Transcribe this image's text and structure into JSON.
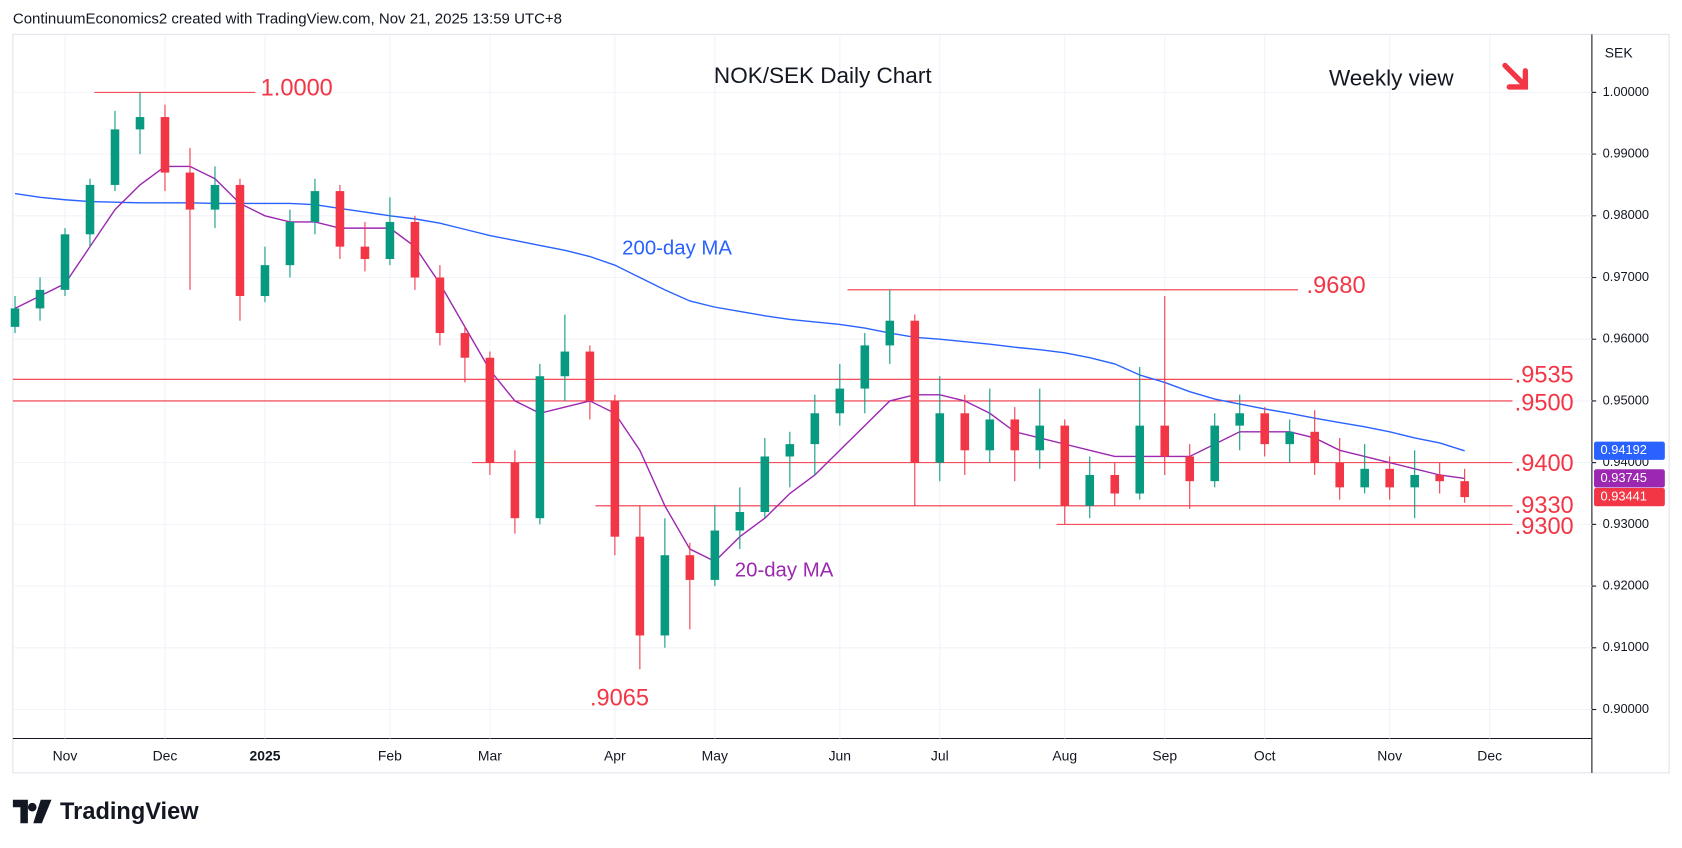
{
  "header": "ContinuumEconomics2 created with TradingView.com, Nov 21, 2025 13:59 UTC+8",
  "logo": "TradingView",
  "chart_data": {
    "type": "candlestick",
    "title": "NOK/SEK Daily Chart",
    "subtitle": "Weekly view",
    "currency": "SEK",
    "categories": [
      null,
      null,
      "Nov",
      null,
      null,
      null,
      "Dec",
      null,
      null,
      null,
      "2025",
      null,
      null,
      null,
      null,
      "Feb",
      null,
      null,
      null,
      "Mar",
      null,
      null,
      null,
      null,
      "Apr",
      null,
      null,
      null,
      "May",
      null,
      null,
      null,
      null,
      "Jun",
      null,
      null,
      null,
      "Jul",
      null,
      null,
      null,
      null,
      "Aug",
      null,
      null,
      null,
      "Sep",
      null,
      null,
      null,
      "Oct",
      null,
      null,
      null,
      null,
      "Nov",
      null,
      null,
      null,
      "Dec"
    ],
    "candles": [
      [
        0.962,
        0.967,
        0.961,
        0.965
      ],
      [
        0.965,
        0.97,
        0.963,
        0.968
      ],
      [
        0.968,
        0.978,
        0.967,
        0.977
      ],
      [
        0.977,
        0.986,
        0.975,
        0.985
      ],
      [
        0.985,
        0.997,
        0.984,
        0.994
      ],
      [
        0.994,
        1.0,
        0.99,
        0.996
      ],
      [
        0.996,
        0.998,
        0.984,
        0.987
      ],
      [
        0.987,
        0.991,
        0.968,
        0.981
      ],
      [
        0.981,
        0.988,
        0.978,
        0.985
      ],
      [
        0.985,
        0.986,
        0.963,
        0.967
      ],
      [
        0.967,
        0.975,
        0.966,
        0.972
      ],
      [
        0.972,
        0.981,
        0.97,
        0.979
      ],
      [
        0.979,
        0.986,
        0.977,
        0.984
      ],
      [
        0.984,
        0.985,
        0.973,
        0.975
      ],
      [
        0.975,
        0.979,
        0.971,
        0.973
      ],
      [
        0.973,
        0.983,
        0.972,
        0.979
      ],
      [
        0.979,
        0.98,
        0.968,
        0.97
      ],
      [
        0.97,
        0.972,
        0.959,
        0.961
      ],
      [
        0.961,
        0.962,
        0.953,
        0.957
      ],
      [
        0.957,
        0.958,
        0.938,
        0.94
      ],
      [
        0.94,
        0.942,
        0.9285,
        0.931
      ],
      [
        0.931,
        0.956,
        0.93,
        0.954
      ],
      [
        0.954,
        0.964,
        0.95,
        0.958
      ],
      [
        0.958,
        0.959,
        0.947,
        0.95
      ],
      [
        0.95,
        0.951,
        0.925,
        0.928
      ],
      [
        0.928,
        0.933,
        0.9065,
        0.912
      ],
      [
        0.912,
        0.931,
        0.91,
        0.925
      ],
      [
        0.925,
        0.927,
        0.913,
        0.921
      ],
      [
        0.921,
        0.933,
        0.92,
        0.929
      ],
      [
        0.929,
        0.936,
        0.926,
        0.932
      ],
      [
        0.932,
        0.944,
        0.931,
        0.941
      ],
      [
        0.941,
        0.945,
        0.936,
        0.943
      ],
      [
        0.943,
        0.951,
        0.938,
        0.948
      ],
      [
        0.948,
        0.956,
        0.946,
        0.952
      ],
      [
        0.952,
        0.961,
        0.948,
        0.959
      ],
      [
        0.959,
        0.968,
        0.956,
        0.963
      ],
      [
        0.963,
        0.964,
        0.933,
        0.94
      ],
      [
        0.94,
        0.954,
        0.937,
        0.948
      ],
      [
        0.948,
        0.951,
        0.938,
        0.942
      ],
      [
        0.942,
        0.952,
        0.94,
        0.947
      ],
      [
        0.947,
        0.949,
        0.937,
        0.942
      ],
      [
        0.942,
        0.952,
        0.939,
        0.946
      ],
      [
        0.946,
        0.947,
        0.93,
        0.933
      ],
      [
        0.933,
        0.941,
        0.931,
        0.938
      ],
      [
        0.938,
        0.94,
        0.933,
        0.935
      ],
      [
        0.935,
        0.9555,
        0.934,
        0.946
      ],
      [
        0.946,
        0.967,
        0.938,
        0.941
      ],
      [
        0.941,
        0.943,
        0.9325,
        0.937
      ],
      [
        0.937,
        0.948,
        0.936,
        0.946
      ],
      [
        0.946,
        0.951,
        0.942,
        0.948
      ],
      [
        0.948,
        0.949,
        0.941,
        0.943
      ],
      [
        0.943,
        0.947,
        0.94,
        0.945
      ],
      [
        0.945,
        0.9485,
        0.938,
        0.94
      ],
      [
        0.94,
        0.944,
        0.934,
        0.936
      ],
      [
        0.936,
        0.943,
        0.935,
        0.939
      ],
      [
        0.939,
        0.941,
        0.934,
        0.936
      ],
      [
        0.936,
        0.942,
        0.931,
        0.938
      ],
      [
        0.938,
        0.94,
        0.935,
        0.937
      ],
      [
        0.937,
        0.939,
        0.9335,
        0.93441
      ],
      null
    ],
    "up_color": "#089981",
    "down_color": "#f23645",
    "series": [
      {
        "name": "200-day MA",
        "color": "#2962ff",
        "values": [
          0.9836,
          0.983,
          0.9826,
          0.9823,
          0.9822,
          0.9821,
          0.9821,
          0.9821,
          0.982,
          0.982,
          0.982,
          0.982,
          0.9818,
          0.9812,
          0.9806,
          0.98,
          0.9795,
          0.9788,
          0.9778,
          0.9768,
          0.976,
          0.9752,
          0.9744,
          0.9734,
          0.972,
          0.97,
          0.968,
          0.9662,
          0.9652,
          0.9645,
          0.9638,
          0.9632,
          0.9628,
          0.9624,
          0.9618,
          0.961,
          0.9603,
          0.96,
          0.9596,
          0.9592,
          0.9587,
          0.9583,
          0.9578,
          0.957,
          0.956,
          0.9542,
          0.953,
          0.9515,
          0.9503,
          0.9495,
          0.9487,
          0.948,
          0.9472,
          0.9465,
          0.9458,
          0.945,
          0.944,
          0.9432,
          0.94192,
          null
        ]
      },
      {
        "name": "20-day MA",
        "color": "#9c27b0",
        "values": [
          0.965,
          0.967,
          0.969,
          0.975,
          0.981,
          0.985,
          0.988,
          0.988,
          0.986,
          0.982,
          0.98,
          0.979,
          0.979,
          0.978,
          0.978,
          0.978,
          0.975,
          0.969,
          0.962,
          0.955,
          0.95,
          0.948,
          0.949,
          0.95,
          0.948,
          0.942,
          0.933,
          0.926,
          0.924,
          0.928,
          0.931,
          0.935,
          0.938,
          0.942,
          0.946,
          0.95,
          0.951,
          0.951,
          0.95,
          0.948,
          0.945,
          0.944,
          0.943,
          0.942,
          0.941,
          0.941,
          0.941,
          0.941,
          0.943,
          0.945,
          0.945,
          0.945,
          0.944,
          0.942,
          0.941,
          0.94,
          0.939,
          0.938,
          0.93745,
          null
        ]
      }
    ],
    "ylim": [
      0.8953,
      1.0094
    ],
    "yticks": [
      {
        "value": 0.9,
        "label": "0.90000"
      },
      {
        "value": 0.91,
        "label": "0.91000"
      },
      {
        "value": 0.92,
        "label": "0.92000"
      },
      {
        "value": 0.93,
        "label": "0.93000"
      },
      {
        "value": 0.94,
        "label": "0.94000"
      },
      {
        "value": 0.95,
        "label": "0.95000"
      },
      {
        "value": 0.96,
        "label": "0.96000"
      },
      {
        "value": 0.97,
        "label": "0.97000"
      },
      {
        "value": 0.98,
        "label": "0.98000"
      },
      {
        "value": 0.99,
        "label": "0.99000"
      },
      {
        "value": 1.0,
        "label": "1.00000"
      }
    ],
    "grid": true,
    "levels": [
      {
        "value": 1.0,
        "label": "1.0000"
      },
      {
        "value": 0.968,
        "label": ".9680"
      },
      {
        "value": 0.9535,
        "label": ".9535"
      },
      {
        "value": 0.95,
        "label": ".9500"
      },
      {
        "value": 0.94,
        "label": ".9400"
      },
      {
        "value": 0.933,
        "label": ".9330"
      },
      {
        "value": 0.93,
        "label": ".9300"
      },
      {
        "value": 0.9065,
        "label": ".9065"
      }
    ],
    "price_tags": [
      {
        "value": 0.94192,
        "label": "0.94192",
        "color": "#2962ff"
      },
      {
        "value": 0.93745,
        "label": "0.93745",
        "color": "#9c27b0"
      },
      {
        "value": 0.93441,
        "label": "0.93441",
        "color": "#f23645"
      }
    ]
  }
}
